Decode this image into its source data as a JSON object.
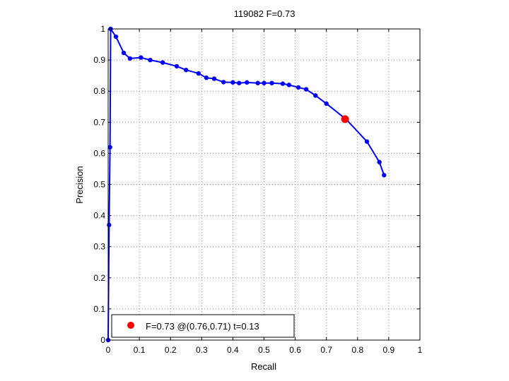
{
  "chart_data": {
    "type": "line",
    "title": "119082 F=0.73",
    "xlabel": "Recall",
    "ylabel": "Precision",
    "xlim": [
      0,
      1
    ],
    "ylim": [
      0,
      1
    ],
    "grid": true,
    "legend_position": "bottom-left",
    "xticks": [
      "0",
      "0.1",
      "0.2",
      "0.3",
      "0.4",
      "0.5",
      "0.6",
      "0.7",
      "0.8",
      "0.9",
      "1"
    ],
    "yticks": [
      "0",
      "0.1",
      "0.2",
      "0.3",
      "0.4",
      "0.5",
      "0.6",
      "0.7",
      "0.8",
      "0.9",
      "1"
    ],
    "series": [
      {
        "color": "#0000ff",
        "points": [
          [
            0.0,
            0.0
          ],
          [
            0.003,
            0.37
          ],
          [
            0.006,
            0.62
          ],
          [
            0.008,
            1.0
          ],
          [
            0.025,
            0.975
          ],
          [
            0.05,
            0.923
          ],
          [
            0.07,
            0.905
          ],
          [
            0.105,
            0.908
          ],
          [
            0.135,
            0.9
          ],
          [
            0.175,
            0.892
          ],
          [
            0.22,
            0.88
          ],
          [
            0.25,
            0.868
          ],
          [
            0.29,
            0.857
          ],
          [
            0.315,
            0.843
          ],
          [
            0.34,
            0.84
          ],
          [
            0.37,
            0.829
          ],
          [
            0.4,
            0.828
          ],
          [
            0.42,
            0.826
          ],
          [
            0.445,
            0.828
          ],
          [
            0.48,
            0.826
          ],
          [
            0.5,
            0.826
          ],
          [
            0.525,
            0.826
          ],
          [
            0.56,
            0.824
          ],
          [
            0.58,
            0.82
          ],
          [
            0.61,
            0.812
          ],
          [
            0.635,
            0.806
          ],
          [
            0.665,
            0.786
          ],
          [
            0.7,
            0.76
          ],
          [
            0.765,
            0.708
          ],
          [
            0.83,
            0.638
          ],
          [
            0.87,
            0.572
          ],
          [
            0.885,
            0.53
          ]
        ]
      }
    ],
    "best_point": {
      "recall": 0.76,
      "precision": 0.71,
      "color": "#ff0000"
    },
    "legend": {
      "label": "F=0.73 @(0.76,0.71) t=0.13",
      "marker_color": "#ff0000"
    }
  }
}
